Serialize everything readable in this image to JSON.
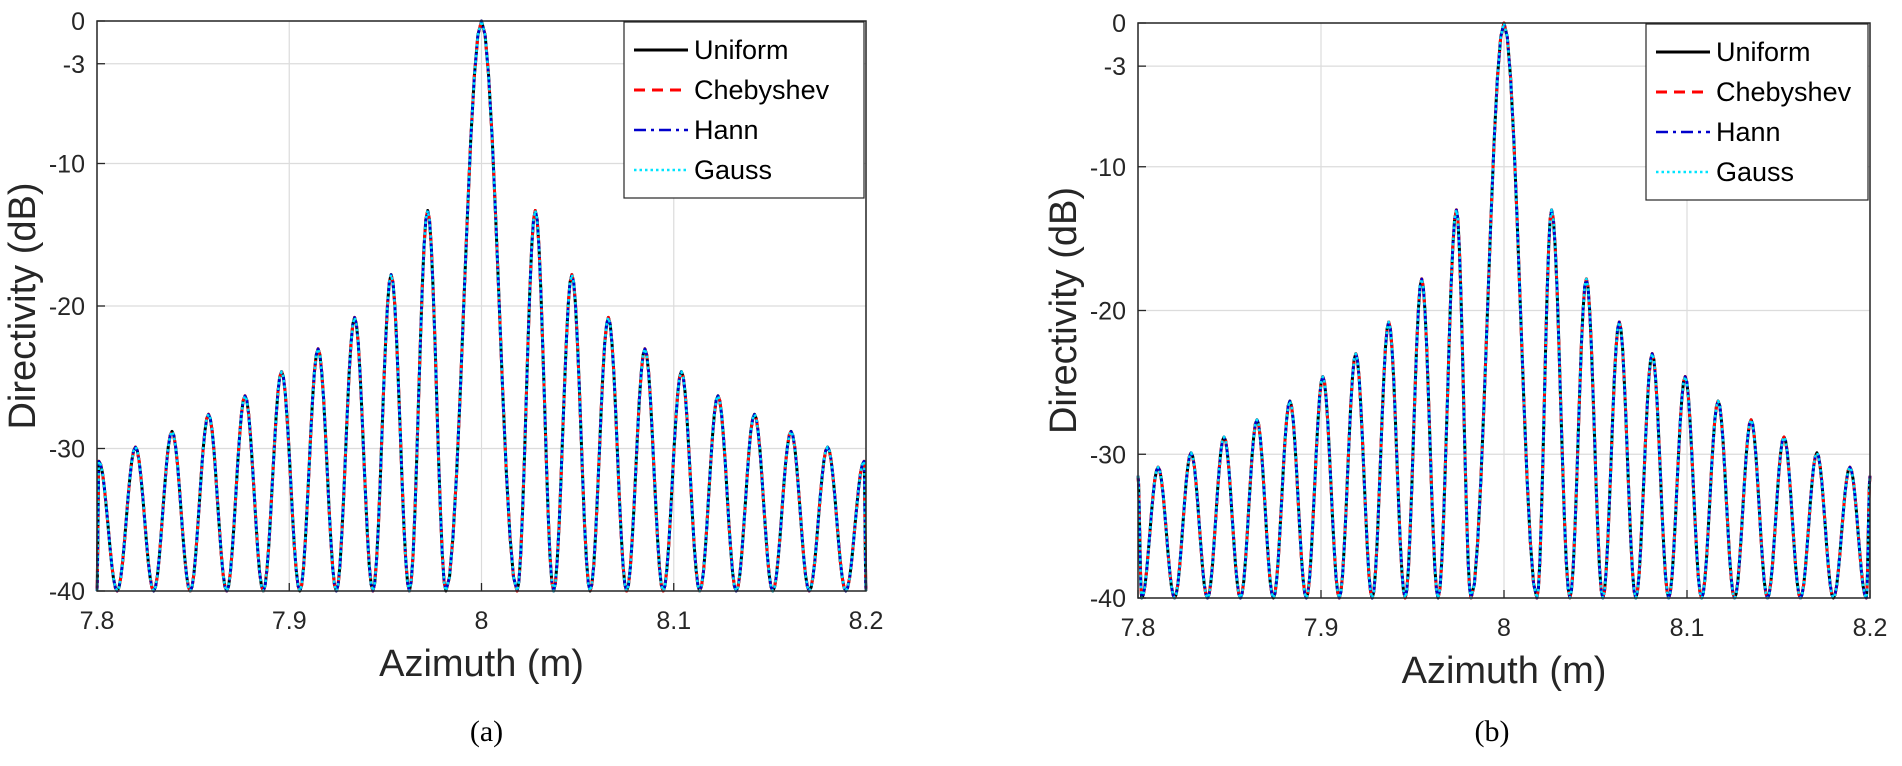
{
  "chart_data": [
    {
      "type": "line",
      "caption": "(a)",
      "xlabel": "Azimuth (m)",
      "ylabel": "Directivity (dB)",
      "xlim": [
        7.8,
        8.2
      ],
      "ylim": [
        -40,
        0
      ],
      "xticks": [
        7.8,
        7.9,
        8,
        8.1,
        8.2
      ],
      "xtick_labels": [
        "7.8",
        "7.9",
        "8",
        "8.1",
        "8.2"
      ],
      "yticks": [
        0,
        -3,
        -10,
        -20,
        -30,
        -40
      ],
      "ytick_labels": [
        "0",
        "-3",
        "-10",
        "-20",
        "-30",
        "-40"
      ],
      "grid": true,
      "legend_position": "top-right",
      "series": [
        {
          "name": "Uniform",
          "color": "#000000",
          "style": "solid"
        },
        {
          "name": "Chebyshev",
          "color": "#ff0000",
          "style": "dashed"
        },
        {
          "name": "Hann",
          "color": "#0000cc",
          "style": "dash-dot"
        },
        {
          "name": "Gauss",
          "color": "#00e5ff",
          "style": "dotted"
        }
      ],
      "curve": {
        "main_lobe": {
          "x": 8.0,
          "y": 0
        },
        "side_lobe_peaks_right": [
          {
            "x": 8.028,
            "y": -13.3
          },
          {
            "x": 8.047,
            "y": -17.8
          },
          {
            "x": 8.066,
            "y": -20.8
          },
          {
            "x": 8.085,
            "y": -23
          },
          {
            "x": 8.104,
            "y": -24.6
          },
          {
            "x": 8.123,
            "y": -26.3
          },
          {
            "x": 8.142,
            "y": -27.6
          },
          {
            "x": 8.161,
            "y": -28.8
          },
          {
            "x": 8.18,
            "y": -29.9
          },
          {
            "x": 8.199,
            "y": -30.9
          }
        ],
        "side_lobe_peaks_left": [
          {
            "x": 7.972,
            "y": -13.3
          },
          {
            "x": 7.953,
            "y": -17.8
          },
          {
            "x": 7.934,
            "y": -20.8
          },
          {
            "x": 7.915,
            "y": -23
          },
          {
            "x": 7.896,
            "y": -24.6
          },
          {
            "x": 7.877,
            "y": -26.3
          },
          {
            "x": 7.858,
            "y": -27.6
          },
          {
            "x": 7.839,
            "y": -28.8
          },
          {
            "x": 7.82,
            "y": -29.9
          },
          {
            "x": 7.801,
            "y": -30.9
          }
        ],
        "nulls_right": [
          8.0185,
          8.0375,
          8.0565,
          8.0755,
          8.0945,
          8.1135,
          8.1325,
          8.1515,
          8.1705,
          8.1895
        ],
        "nulls_left": [
          7.9815,
          7.9625,
          7.9435,
          7.9245,
          7.9055,
          7.8865,
          7.8675,
          7.8485,
          7.8295,
          7.8105
        ]
      }
    },
    {
      "type": "line",
      "caption": "(b)",
      "xlabel": "Azimuth (m)",
      "ylabel": "Directivity (dB)",
      "xlim": [
        7.8,
        8.2
      ],
      "ylim": [
        -40,
        0
      ],
      "xticks": [
        7.8,
        7.9,
        8,
        8.1,
        8.2
      ],
      "xtick_labels": [
        "7.8",
        "7.9",
        "8",
        "8.1",
        "8.2"
      ],
      "yticks": [
        0,
        -3,
        -10,
        -20,
        -30,
        -40
      ],
      "ytick_labels": [
        "0",
        "-3",
        "-10",
        "-20",
        "-30",
        "-40"
      ],
      "grid": true,
      "legend_position": "top-right",
      "series": [
        {
          "name": "Uniform",
          "color": "#000000",
          "style": "solid"
        },
        {
          "name": "Chebyshev",
          "color": "#ff0000",
          "style": "dashed"
        },
        {
          "name": "Hann",
          "color": "#0000cc",
          "style": "dash-dot"
        },
        {
          "name": "Gauss",
          "color": "#00e5ff",
          "style": "dotted"
        }
      ],
      "curve": {
        "main_lobe": {
          "x": 8.0,
          "y": 0
        },
        "side_lobe_peaks_right": [
          {
            "x": 8.026,
            "y": -13
          },
          {
            "x": 8.045,
            "y": -17.8
          },
          {
            "x": 8.063,
            "y": -20.8
          },
          {
            "x": 8.081,
            "y": -23
          },
          {
            "x": 8.099,
            "y": -24.6
          },
          {
            "x": 8.117,
            "y": -26.3
          },
          {
            "x": 8.135,
            "y": -27.6
          },
          {
            "x": 8.153,
            "y": -28.8
          },
          {
            "x": 8.171,
            "y": -29.9
          },
          {
            "x": 8.189,
            "y": -30.9
          }
        ],
        "side_lobe_peaks_left": [
          {
            "x": 7.974,
            "y": -13
          },
          {
            "x": 7.955,
            "y": -17.8
          },
          {
            "x": 7.937,
            "y": -20.8
          },
          {
            "x": 7.919,
            "y": -23
          },
          {
            "x": 7.901,
            "y": -24.6
          },
          {
            "x": 7.883,
            "y": -26.3
          },
          {
            "x": 7.865,
            "y": -27.6
          },
          {
            "x": 7.847,
            "y": -28.8
          },
          {
            "x": 7.829,
            "y": -29.9
          },
          {
            "x": 7.811,
            "y": -30.9
          }
        ],
        "nulls_right": [
          8.018,
          8.036,
          8.054,
          8.072,
          8.09,
          8.108,
          8.126,
          8.144,
          8.162,
          8.18,
          8.198
        ],
        "nulls_left": [
          7.982,
          7.964,
          7.946,
          7.928,
          7.91,
          7.892,
          7.874,
          7.856,
          7.838,
          7.82,
          7.802
        ]
      }
    }
  ]
}
